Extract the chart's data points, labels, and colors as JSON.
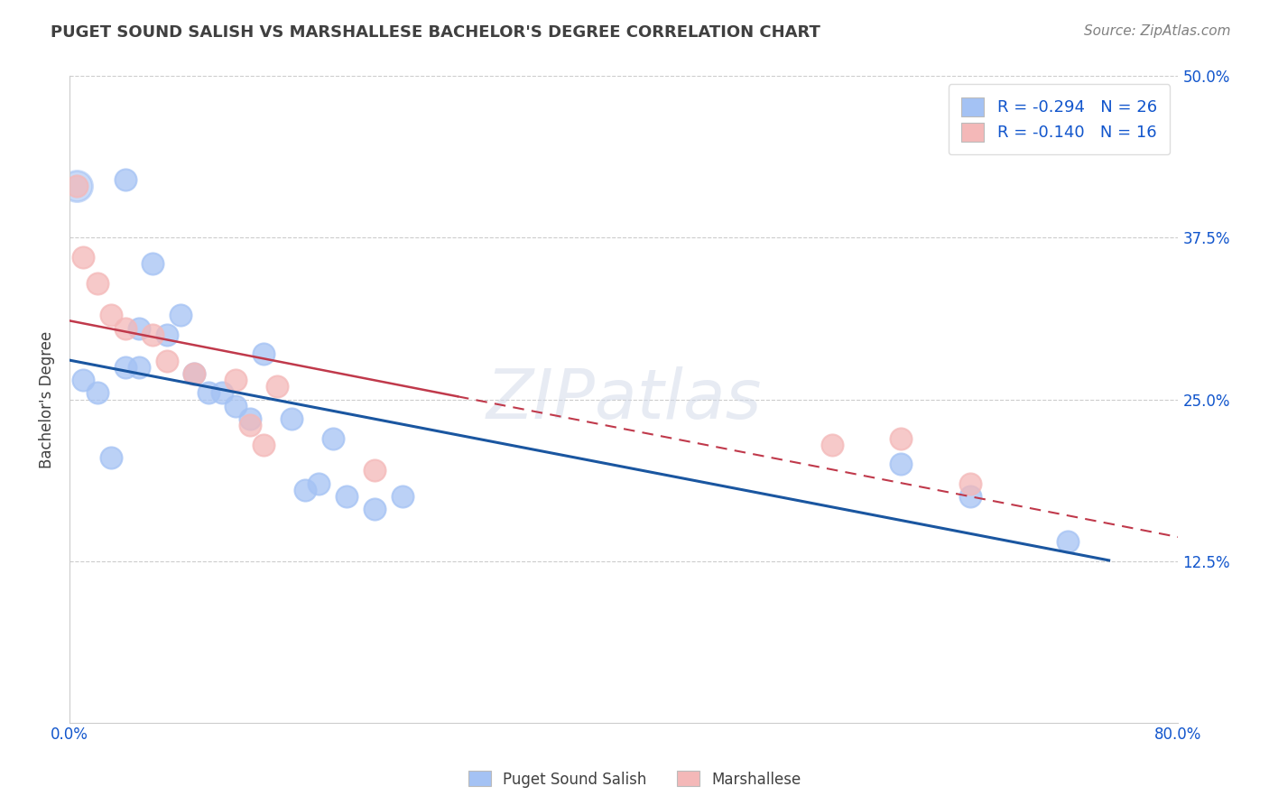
{
  "title": "PUGET SOUND SALISH VS MARSHALLESE BACHELOR'S DEGREE CORRELATION CHART",
  "source": "Source: ZipAtlas.com",
  "ylabel": "Bachelor's Degree",
  "legend_label1": "Puget Sound Salish",
  "legend_label2": "Marshallese",
  "R1": -0.294,
  "N1": 26,
  "R2": -0.14,
  "N2": 16,
  "color1": "#a4c2f4",
  "color2": "#f4b8b8",
  "line_color1": "#1a56a0",
  "line_color2": "#c0394b",
  "bg_color": "#ffffff",
  "grid_color": "#cccccc",
  "title_color": "#404040",
  "axis_label_color": "#404040",
  "tick_color": "#1155cc",
  "source_color": "#808080",
  "legend_text_color": "#1155cc",
  "xlim": [
    0.0,
    0.8
  ],
  "ylim": [
    0.0,
    0.5
  ],
  "xtick_positions": [
    0.0,
    0.2,
    0.4,
    0.6,
    0.8
  ],
  "ytick_positions": [
    0.0,
    0.125,
    0.25,
    0.375,
    0.5
  ],
  "puget_x": [
    0.01,
    0.02,
    0.03,
    0.04,
    0.04,
    0.05,
    0.05,
    0.06,
    0.07,
    0.08,
    0.09,
    0.1,
    0.11,
    0.12,
    0.13,
    0.14,
    0.16,
    0.17,
    0.18,
    0.19,
    0.2,
    0.22,
    0.24,
    0.6,
    0.65,
    0.72
  ],
  "puget_y": [
    0.265,
    0.255,
    0.205,
    0.42,
    0.275,
    0.305,
    0.275,
    0.355,
    0.3,
    0.315,
    0.27,
    0.255,
    0.255,
    0.245,
    0.235,
    0.285,
    0.235,
    0.18,
    0.185,
    0.22,
    0.175,
    0.165,
    0.175,
    0.2,
    0.175,
    0.14
  ],
  "marshall_x": [
    0.005,
    0.01,
    0.02,
    0.03,
    0.04,
    0.06,
    0.07,
    0.09,
    0.12,
    0.13,
    0.14,
    0.15,
    0.22,
    0.55,
    0.6,
    0.65
  ],
  "marshall_y": [
    0.415,
    0.36,
    0.34,
    0.315,
    0.305,
    0.3,
    0.28,
    0.27,
    0.265,
    0.23,
    0.215,
    0.26,
    0.195,
    0.215,
    0.22,
    0.185
  ]
}
